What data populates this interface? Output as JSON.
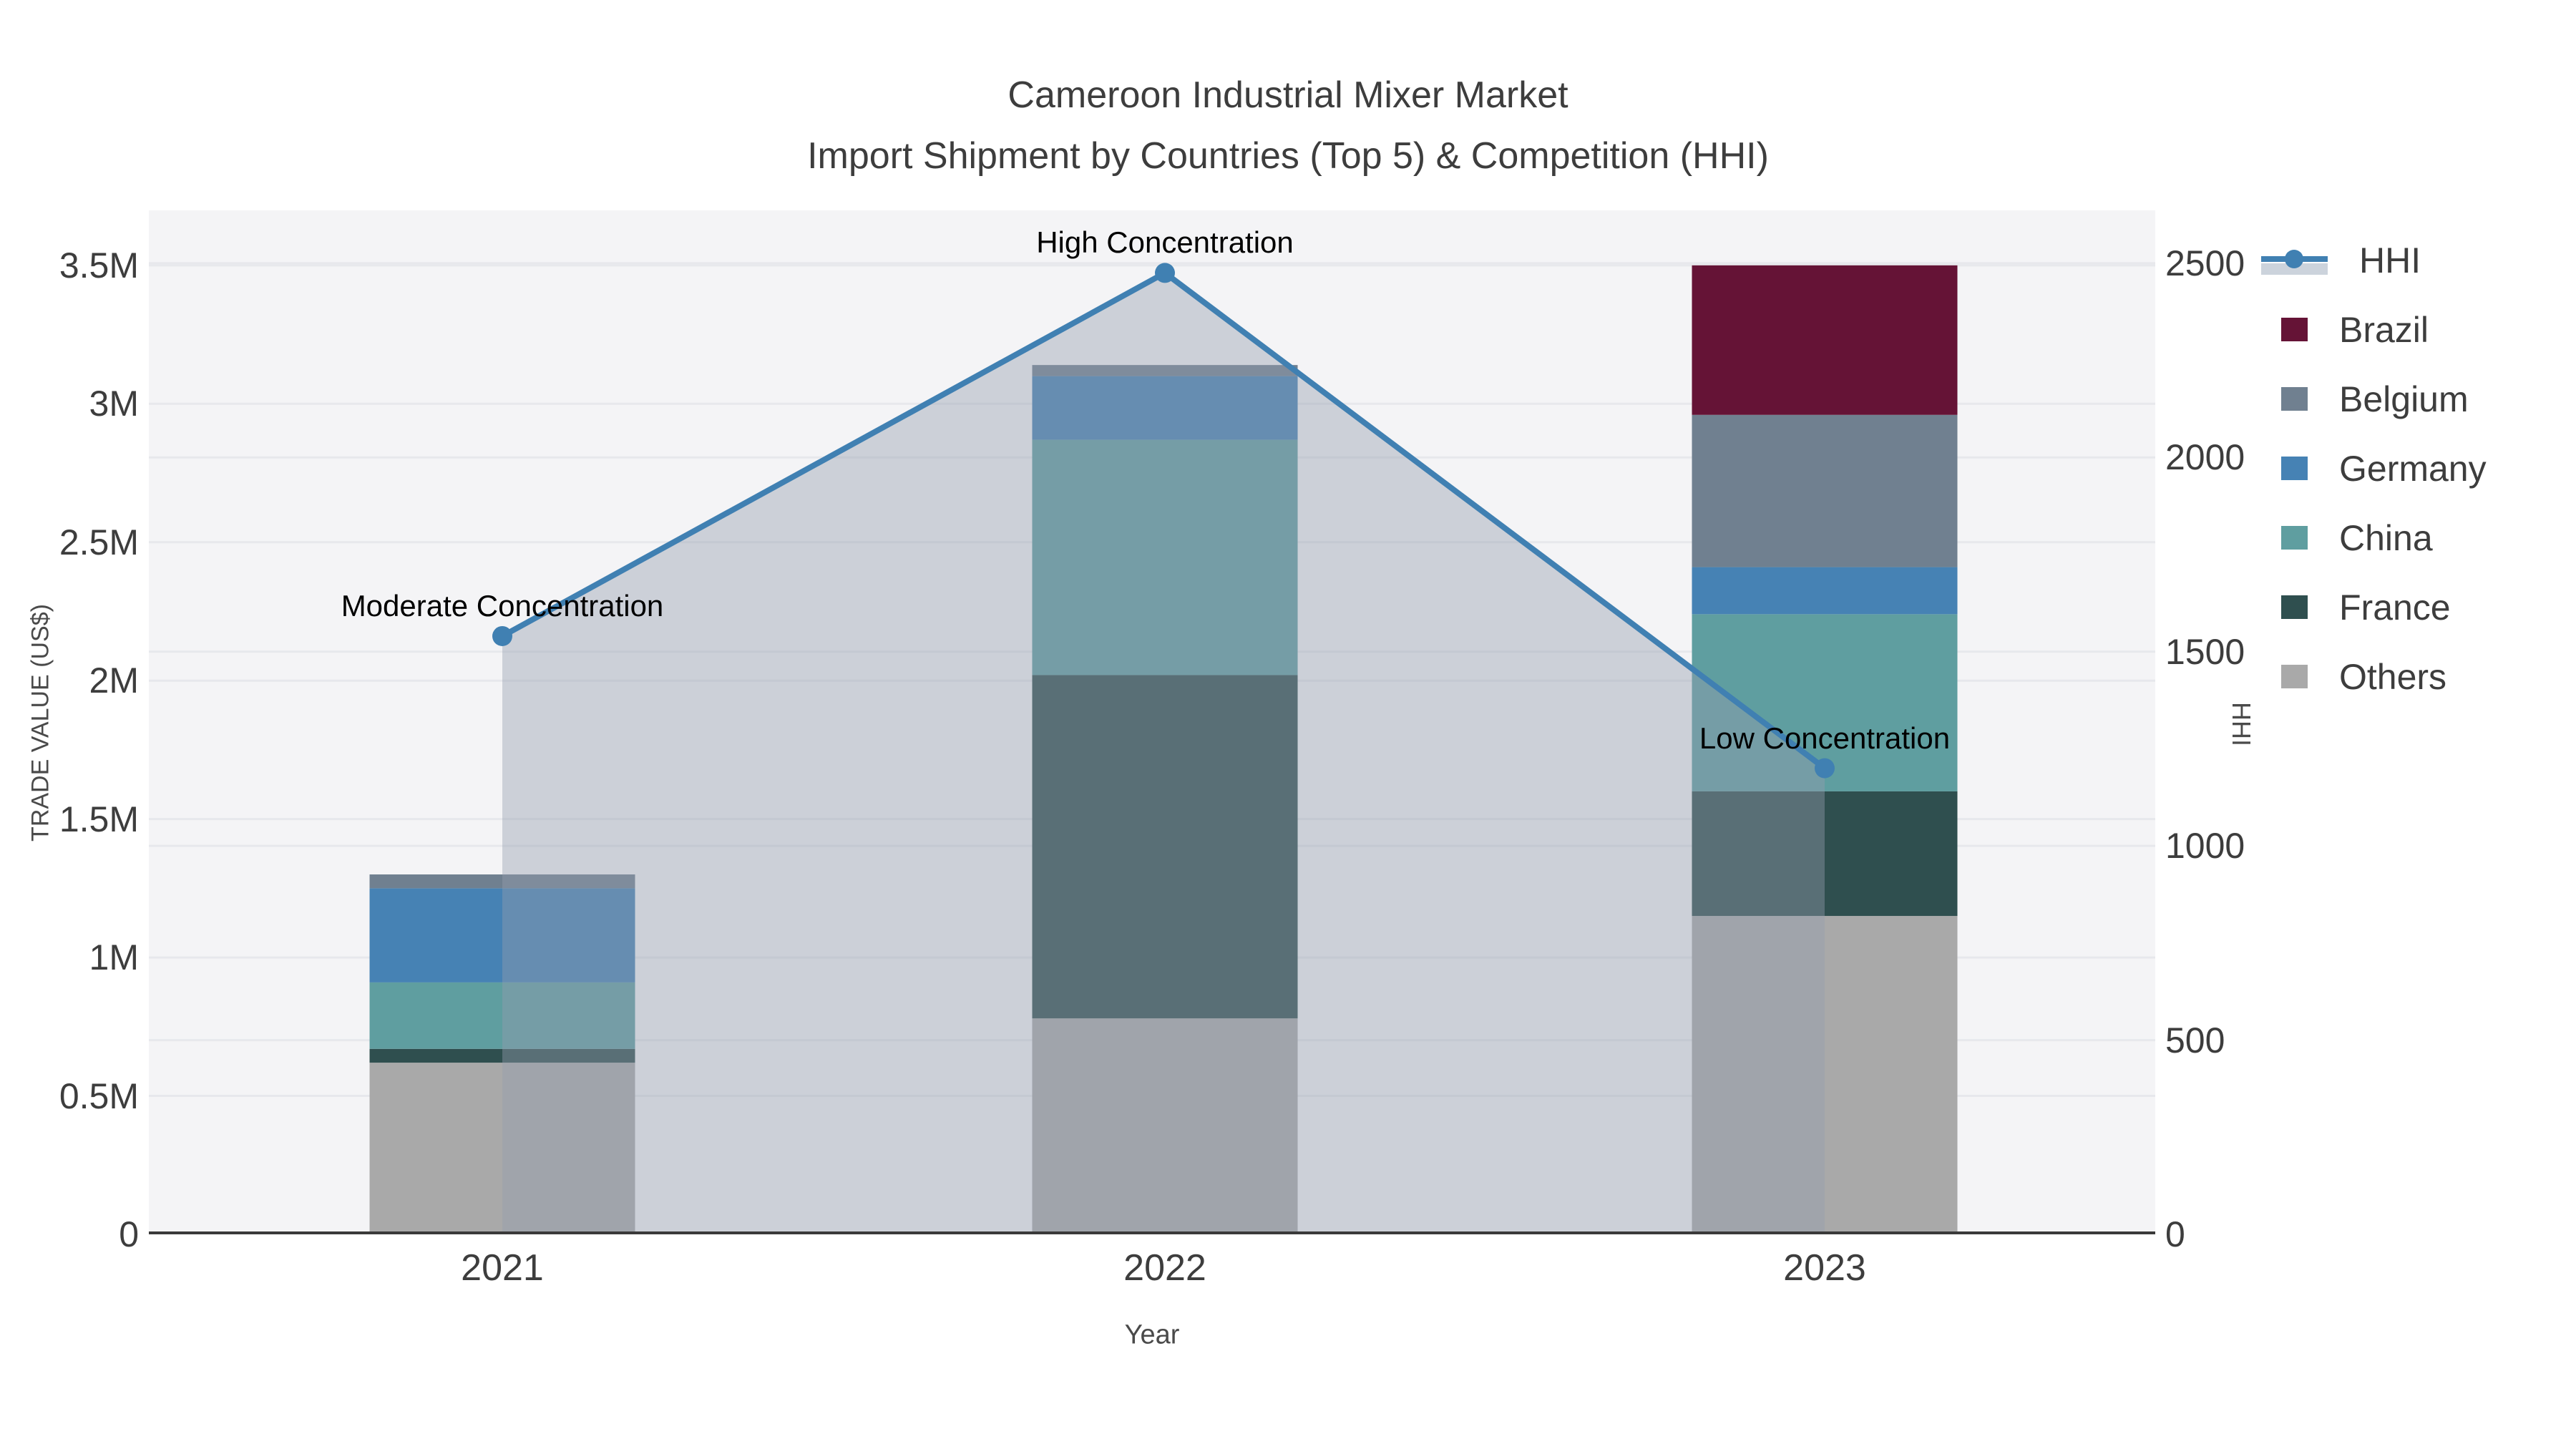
{
  "title": {
    "line1": "Cameroon Industrial Mixer Market",
    "line2": "Import Shipment by Countries (Top 5) & Competition (HHI)"
  },
  "legend": {
    "items": [
      {
        "label": "HHI",
        "type": "line"
      },
      {
        "label": "Brazil",
        "type": "swatch",
        "color_key": "brazil"
      },
      {
        "label": "Belgium",
        "type": "swatch",
        "color_key": "belgium"
      },
      {
        "label": "Germany",
        "type": "swatch",
        "color_key": "germany"
      },
      {
        "label": "China",
        "type": "swatch",
        "color_key": "china"
      },
      {
        "label": "France",
        "type": "swatch",
        "color_key": "france"
      },
      {
        "label": "Others",
        "type": "swatch",
        "color_key": "others"
      }
    ]
  },
  "colors": {
    "brazil": "#651336",
    "belgium": "#708090",
    "germany": "#4682B4",
    "china": "#5F9EA0",
    "france": "#2F4F4F",
    "others": "#A9A9A9",
    "hhi_line": "#4080b2",
    "hhi_fill": "rgba(147,157,173,0.42)",
    "plot_bg": "#f4f4f6",
    "grid": "#e7e8ec",
    "spine": "#3a3a3a"
  },
  "chart_data": {
    "type": "combo: stacked bar (trade value) + line with area fill (HHI), dual y-axis",
    "categories": [
      "2021",
      "2022",
      "2023"
    ],
    "stack_order_bottom_to_top": [
      "Others",
      "France",
      "China",
      "Germany",
      "Belgium",
      "Brazil"
    ],
    "series": [
      {
        "name": "Others",
        "color_key": "others",
        "values_musd": [
          0.62,
          0.78,
          1.15
        ]
      },
      {
        "name": "France",
        "color_key": "france",
        "values_musd": [
          0.05,
          1.24,
          0.45
        ]
      },
      {
        "name": "China",
        "color_key": "china",
        "values_musd": [
          0.24,
          0.85,
          0.64
        ]
      },
      {
        "name": "Germany",
        "color_key": "germany",
        "values_musd": [
          0.34,
          0.23,
          0.17
        ]
      },
      {
        "name": "Belgium",
        "color_key": "belgium",
        "values_musd": [
          0.05,
          0.04,
          0.55
        ]
      },
      {
        "name": "Brazil",
        "color_key": "brazil",
        "values_musd": [
          0.0,
          0.0,
          0.54
        ]
      }
    ],
    "bar_totals_musd": [
      1.3,
      3.14,
      3.5
    ],
    "hhi": {
      "name": "HHI",
      "values": [
        1540,
        2475,
        1200
      ]
    },
    "annotations": [
      {
        "text": "Moderate Concentration",
        "category_index": 0
      },
      {
        "text": "High Concentration",
        "category_index": 1
      },
      {
        "text": "Low Concentration",
        "category_index": 2
      }
    ],
    "left_axis": {
      "title": "TRADE VALUE (US$)",
      "tick_labels": [
        "0",
        "0.5M",
        "1M",
        "1.5M",
        "2M",
        "2.5M",
        "3M",
        "3.5M"
      ],
      "tick_values_musd": [
        0,
        0.5,
        1,
        1.5,
        2,
        2.5,
        3,
        3.5
      ],
      "range_musd": [
        0,
        3.7
      ]
    },
    "right_axis": {
      "title": "HHI",
      "tick_labels": [
        "0",
        "500",
        "1000",
        "1500",
        "2000",
        "2500"
      ],
      "tick_values": [
        0,
        500,
        1000,
        1500,
        2000,
        2500
      ],
      "range": [
        0,
        2636
      ]
    },
    "x_axis": {
      "title": "Year",
      "tick_labels": [
        "2021",
        "2022",
        "2023"
      ]
    },
    "grid": true,
    "legend_position": "outside-right-top"
  }
}
